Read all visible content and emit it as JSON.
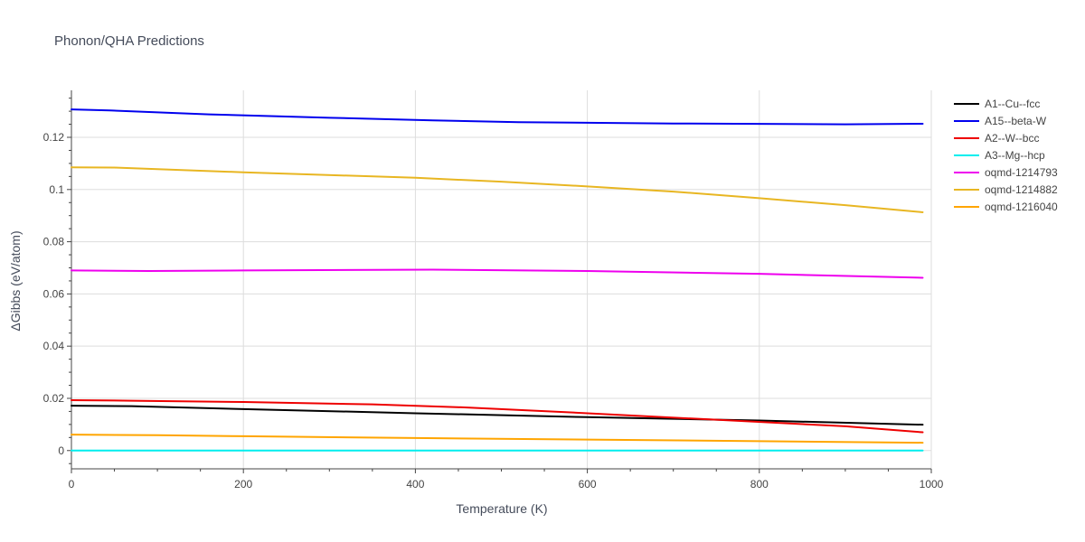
{
  "chart_data": {
    "type": "line",
    "title": "Phonon/QHA Predictions",
    "xlabel": "Temperature (K)",
    "ylabel": "ΔGibbs (eV/atom)",
    "xlim": [
      0,
      1000
    ],
    "ylim": [
      -0.007,
      0.138
    ],
    "x_ticks": [
      0,
      200,
      400,
      600,
      800,
      1000
    ],
    "x_tick_labels": [
      "0",
      "200",
      "400",
      "600",
      "800",
      "1000"
    ],
    "y_ticks": [
      0,
      0.02,
      0.04,
      0.06,
      0.08,
      0.1,
      0.12
    ],
    "y_tick_labels": [
      "0",
      "0.02",
      "0.04",
      "0.06",
      "0.08",
      "0.1",
      "0.12"
    ],
    "grid": true,
    "legend_position": "right",
    "series": [
      {
        "name": "A1--Cu--fcc",
        "color": "#000000",
        "x": [
          0,
          70,
          200,
          400,
          600,
          800,
          990
        ],
        "y": [
          0.0172,
          0.017,
          0.0159,
          0.0143,
          0.0128,
          0.0115,
          0.0099
        ]
      },
      {
        "name": "A15--beta-W",
        "color": "#0000ee",
        "x": [
          0,
          45,
          160,
          300,
          420,
          520,
          700,
          900,
          990
        ],
        "y": [
          0.1307,
          0.1303,
          0.1288,
          0.1275,
          0.1265,
          0.1258,
          0.1253,
          0.125,
          0.1252
        ]
      },
      {
        "name": "A2--W--bcc",
        "color": "#ee0000",
        "x": [
          0,
          70,
          200,
          350,
          460,
          600,
          750,
          900,
          990
        ],
        "y": [
          0.0193,
          0.0191,
          0.0186,
          0.0177,
          0.0165,
          0.0143,
          0.0118,
          0.0093,
          0.007
        ]
      },
      {
        "name": "A3--Mg--hcp",
        "color": "#00eeee",
        "x": [
          0,
          990
        ],
        "y": [
          0.0,
          0.0
        ]
      },
      {
        "name": "oqmd-1214793",
        "color": "#ee00ee",
        "x": [
          0,
          90,
          200,
          420,
          600,
          800,
          990
        ],
        "y": [
          0.069,
          0.0688,
          0.069,
          0.0693,
          0.0688,
          0.0677,
          0.0662
        ]
      },
      {
        "name": "oqmd-1214882",
        "color": "#e8b622",
        "x": [
          0,
          50,
          200,
          400,
          500,
          600,
          700,
          800,
          900,
          990
        ],
        "y": [
          0.1085,
          0.1084,
          0.1066,
          0.1045,
          0.103,
          0.1012,
          0.0992,
          0.0967,
          0.094,
          0.0913
        ]
      },
      {
        "name": "oqmd-1216040",
        "color": "#ffa500",
        "x": [
          0,
          100,
          200,
          400,
          600,
          800,
          990
        ],
        "y": [
          0.0061,
          0.0059,
          0.0055,
          0.0048,
          0.0042,
          0.0036,
          0.003
        ]
      }
    ]
  }
}
